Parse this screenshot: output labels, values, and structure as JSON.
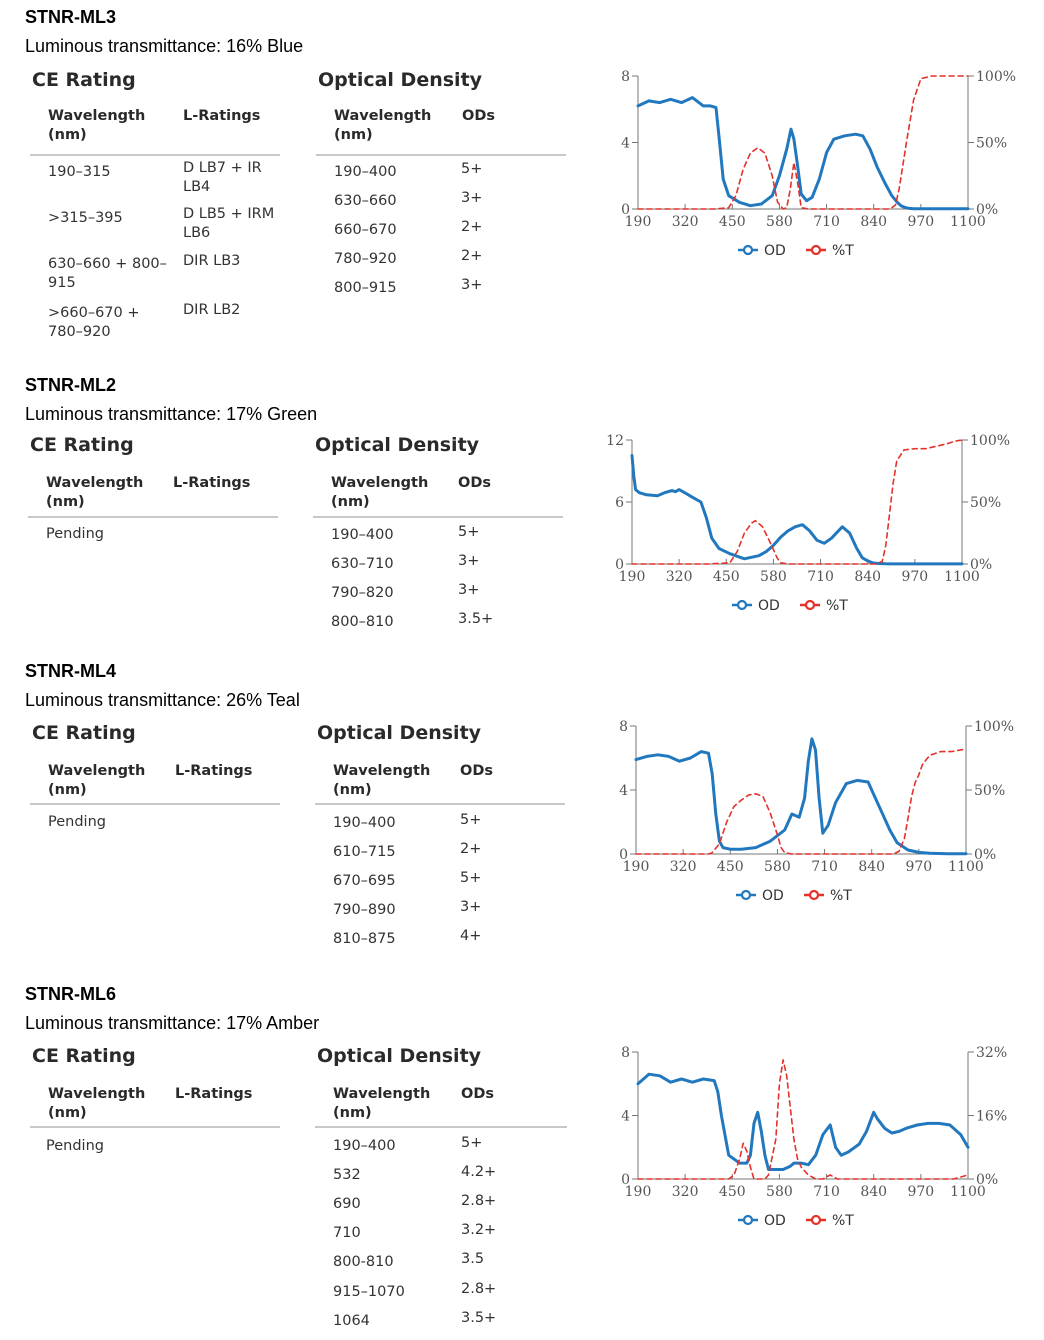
{
  "products": [
    {
      "name": "STNR-ML3",
      "luminous": "Luminous transmittance: 16% Blue",
      "ce_heading": "CE Rating",
      "od_heading": "Optical Density",
      "ce_columns": [
        "Wavelength (nm)",
        "L-Ratings"
      ],
      "od_columns": [
        "Wavelength (nm)",
        "ODs"
      ],
      "ce_rows": [
        [
          "190–315",
          "D LB7 + IR LB4"
        ],
        [
          ">315–395",
          "D LB5 + IRM LB6"
        ],
        [
          "630–660 + 800–915",
          "DIR LB3"
        ],
        [
          ">660–670 + 780–920",
          "DIR LB2"
        ]
      ],
      "od_rows": [
        [
          "190–400",
          "5+"
        ],
        [
          "630–660",
          "3+"
        ],
        [
          "660–670",
          "2+"
        ],
        [
          "780–920",
          "2+"
        ],
        [
          "800–915",
          "3+"
        ]
      ],
      "chart_data": {
        "type": "line",
        "x_ticks": [
          "190",
          "320",
          "450",
          "580",
          "710",
          "840",
          "970",
          "1100"
        ],
        "xlim": [
          190,
          1100
        ],
        "y_left_ticks": [
          "0",
          "4",
          "8"
        ],
        "y_left_lim": [
          0,
          8
        ],
        "y_right_ticks": [
          "0%",
          "50%",
          "100%"
        ],
        "y_right_lim": [
          0,
          100
        ],
        "legend": [
          "OD",
          "%T"
        ],
        "series": [
          {
            "name": "OD",
            "axis": "left",
            "color": "#2278be",
            "x": [
              190,
              220,
              250,
              280,
              310,
              340,
              370,
              390,
              405,
              415,
              425,
              440,
              470,
              500,
              530,
              560,
              580,
              600,
              612,
              620,
              630,
              640,
              655,
              670,
              690,
              710,
              730,
              760,
              790,
              810,
              830,
              850,
              870,
              890,
              905,
              915,
              925,
              935,
              950,
              970,
              1000,
              1050,
              1100
            ],
            "y": [
              6.2,
              6.5,
              6.4,
              6.6,
              6.4,
              6.7,
              6.2,
              6.2,
              6.1,
              4.0,
              1.8,
              0.8,
              0.4,
              0.2,
              0.3,
              0.8,
              2.0,
              3.6,
              4.8,
              4.2,
              2.6,
              0.9,
              0.5,
              0.7,
              1.8,
              3.4,
              4.2,
              4.4,
              4.5,
              4.4,
              3.6,
              2.5,
              1.6,
              0.8,
              0.4,
              0.2,
              0.1,
              0.05,
              0.02,
              0.01,
              0.01,
              0.01,
              0.01
            ]
          },
          {
            "name": "%T",
            "axis": "right",
            "color": "#e4312b",
            "x": [
              190,
              300,
              400,
              440,
              460,
              480,
              500,
              520,
              540,
              560,
              575,
              590,
              600,
              610,
              620,
              630,
              640,
              660,
              700,
              760,
              800,
              840,
              860,
              870,
              880,
              890,
              900,
              910,
              920,
              930,
              940,
              950,
              970,
              1000,
              1030,
              1060,
              1100
            ],
            "y": [
              0,
              0,
              0,
              1,
              10,
              30,
              42,
              46,
              42,
              25,
              5,
              0,
              1,
              15,
              35,
              20,
              1,
              0,
              0,
              0,
              0,
              0,
              0,
              0,
              0,
              1,
              3,
              15,
              32,
              50,
              66,
              82,
              98,
              100,
              100,
              100,
              100
            ]
          }
        ]
      }
    },
    {
      "name": "STNR-ML2",
      "luminous": "Luminous transmittance: 17% Green",
      "ce_heading": "CE Rating",
      "od_heading": "Optical Density",
      "ce_columns": [
        "Wavelength (nm)",
        "L-Ratings"
      ],
      "od_columns": [
        "Wavelength (nm)",
        "ODs"
      ],
      "ce_rows": [
        [
          "Pending",
          ""
        ]
      ],
      "od_rows": [
        [
          "190–400",
          "5+"
        ],
        [
          "630–710",
          "3+"
        ],
        [
          "790–820",
          "3+"
        ],
        [
          "800–810",
          "3.5+"
        ]
      ],
      "chart_data": {
        "type": "line",
        "x_ticks": [
          "190",
          "320",
          "450",
          "580",
          "710",
          "840",
          "970",
          "1100"
        ],
        "xlim": [
          190,
          1100
        ],
        "y_left_ticks": [
          "0",
          "6",
          "12"
        ],
        "y_left_lim": [
          0,
          12
        ],
        "y_right_ticks": [
          "0%",
          "50%",
          "100%"
        ],
        "y_right_lim": [
          0,
          100
        ],
        "legend": [
          "OD",
          "%T"
        ],
        "series": [
          {
            "name": "OD",
            "axis": "left",
            "color": "#2278be",
            "x": [
              190,
              195,
              200,
              210,
              230,
              260,
              280,
              300,
              310,
              320,
              340,
              360,
              380,
              395,
              410,
              430,
              460,
              500,
              540,
              560,
              580,
              600,
              620,
              640,
              660,
              680,
              700,
              720,
              740,
              770,
              790,
              810,
              825,
              840,
              855,
              870,
              890,
              920,
              960,
              1000,
              1050,
              1100
            ],
            "y": [
              10.5,
              8.5,
              7.2,
              6.9,
              6.7,
              6.6,
              6.9,
              7.1,
              7.0,
              7.2,
              6.8,
              6.4,
              6.0,
              4.5,
              2.5,
              1.5,
              1.0,
              0.5,
              0.8,
              1.2,
              1.8,
              2.6,
              3.2,
              3.6,
              3.8,
              3.2,
              2.3,
              2.0,
              2.5,
              3.6,
              3.0,
              1.5,
              0.6,
              0.3,
              0.1,
              0.05,
              0.02,
              0.01,
              0.01,
              0.01,
              0.01,
              0.01
            ]
          },
          {
            "name": "%T",
            "axis": "right",
            "color": "#e4312b",
            "x": [
              190,
              300,
              400,
              460,
              480,
              500,
              520,
              530,
              550,
              570,
              590,
              600,
              620,
              700,
              800,
              860,
              880,
              890,
              900,
              910,
              920,
              940,
              970,
              1000,
              1030,
              1060,
              1080,
              1100
            ],
            "y": [
              0,
              0,
              0,
              1,
              10,
              25,
              33,
              35,
              30,
              18,
              5,
              1,
              0,
              0,
              0,
              0,
              2,
              15,
              40,
              65,
              83,
              92,
              93,
              93,
              95,
              97,
              99,
              100
            ]
          }
        ]
      }
    },
    {
      "name": "STNR-ML4",
      "luminous": "Luminous transmittance: 26% Teal",
      "ce_heading": "CE Rating",
      "od_heading": "Optical Density",
      "ce_columns": [
        "Wavelength (nm)",
        "L-Ratings"
      ],
      "od_columns": [
        "Wavelength (nm)",
        "ODs"
      ],
      "ce_rows": [
        [
          "Pending",
          ""
        ]
      ],
      "od_rows": [
        [
          "190–400",
          "5+"
        ],
        [
          "610–715",
          "2+"
        ],
        [
          "670–695",
          "5+"
        ],
        [
          "790–890",
          "3+"
        ],
        [
          "810–875",
          "4+"
        ]
      ],
      "chart_data": {
        "type": "line",
        "x_ticks": [
          "190",
          "320",
          "450",
          "580",
          "710",
          "840",
          "970",
          "1100"
        ],
        "xlim": [
          190,
          1100
        ],
        "y_left_ticks": [
          "0",
          "4",
          "8"
        ],
        "y_left_lim": [
          0,
          8
        ],
        "y_right_ticks": [
          "0%",
          "50%",
          "100%"
        ],
        "y_right_lim": [
          0,
          100
        ],
        "legend": [
          "OD",
          "%T"
        ],
        "series": [
          {
            "name": "OD",
            "axis": "left",
            "color": "#2278be",
            "x": [
              190,
              220,
              250,
              280,
              310,
              340,
              370,
              390,
              400,
              410,
              420,
              430,
              450,
              480,
              520,
              560,
              600,
              620,
              640,
              655,
              665,
              675,
              685,
              695,
              705,
              720,
              740,
              770,
              800,
              830,
              850,
              870,
              890,
              910,
              940,
              970,
              1000,
              1050,
              1100
            ],
            "y": [
              5.9,
              6.1,
              6.2,
              6.1,
              5.8,
              6.0,
              6.4,
              6.3,
              5.0,
              2.5,
              0.8,
              0.4,
              0.3,
              0.3,
              0.4,
              0.8,
              1.5,
              2.5,
              2.3,
              3.5,
              5.8,
              7.2,
              6.5,
              3.5,
              1.3,
              1.8,
              3.2,
              4.4,
              4.6,
              4.5,
              3.5,
              2.5,
              1.5,
              0.7,
              0.25,
              0.1,
              0.05,
              0.02,
              0.02
            ]
          },
          {
            "name": "%T",
            "axis": "right",
            "color": "#e4312b",
            "x": [
              190,
              300,
              390,
              400,
              420,
              440,
              460,
              480,
              500,
              520,
              540,
              560,
              580,
              590,
              600,
              620,
              640,
              700,
              800,
              900,
              915,
              930,
              940,
              950,
              960,
              970,
              980,
              1000,
              1030,
              1060,
              1080,
              1100
            ],
            "y": [
              0,
              0,
              0,
              1,
              8,
              25,
              37,
              42,
              46,
              47,
              45,
              32,
              15,
              5,
              1,
              0,
              0,
              0,
              0,
              0,
              2,
              12,
              28,
              45,
              56,
              62,
              70,
              77,
              80,
              80,
              81,
              82
            ]
          }
        ]
      }
    },
    {
      "name": "STNR-ML6",
      "luminous": "Luminous transmittance: 17% Amber",
      "ce_heading": "CE Rating",
      "od_heading": "Optical Density",
      "ce_columns": [
        "Wavelength (nm)",
        "L-Ratings"
      ],
      "od_columns": [
        "Wavelength (nm)",
        "ODs"
      ],
      "ce_rows": [
        [
          "Pending",
          ""
        ]
      ],
      "od_rows": [
        [
          "190–400",
          "5+"
        ],
        [
          "532",
          "4.2+"
        ],
        [
          "690",
          "2.8+"
        ],
        [
          "710",
          "3.2+"
        ],
        [
          "800-810",
          "3.5"
        ],
        [
          "915–1070",
          "2.8+"
        ],
        [
          "1064",
          "3.5+"
        ]
      ],
      "chart_data": {
        "type": "line",
        "x_ticks": [
          "190",
          "320",
          "450",
          "580",
          "710",
          "840",
          "970",
          "1100"
        ],
        "xlim": [
          190,
          1100
        ],
        "y_left_ticks": [
          "0",
          "4",
          "8"
        ],
        "y_left_lim": [
          0,
          8
        ],
        "y_right_ticks": [
          "0%",
          "16%",
          "32%"
        ],
        "y_right_lim": [
          0,
          32
        ],
        "legend": [
          "OD",
          "%T"
        ],
        "series": [
          {
            "name": "OD",
            "axis": "left",
            "color": "#2278be",
            "x": [
              190,
              220,
              250,
              280,
              310,
              340,
              370,
              400,
              410,
              420,
              440,
              470,
              490,
              500,
              510,
              520,
              530,
              540,
              550,
              570,
              590,
              610,
              620,
              640,
              660,
              680,
              700,
              720,
              735,
              750,
              770,
              800,
              820,
              840,
              850,
              870,
              890,
              910,
              930,
              960,
              990,
              1020,
              1050,
              1080,
              1100
            ],
            "y": [
              6.0,
              6.6,
              6.5,
              6.1,
              6.3,
              6.1,
              6.3,
              6.2,
              5.5,
              4.0,
              1.5,
              1.0,
              1.0,
              1.5,
              3.5,
              4.2,
              3.0,
              1.5,
              0.6,
              0.6,
              0.6,
              0.8,
              1.0,
              1.0,
              0.9,
              1.5,
              2.8,
              3.4,
              2.0,
              1.5,
              1.7,
              2.2,
              3.0,
              4.2,
              3.8,
              3.2,
              2.9,
              3.0,
              3.2,
              3.4,
              3.5,
              3.5,
              3.4,
              2.8,
              2.0
            ]
          },
          {
            "name": "%T",
            "axis": "right",
            "color": "#e4312b",
            "x": [
              190,
              440,
              455,
              470,
              480,
              490,
              500,
              510,
              540,
              550,
              570,
              580,
              590,
              600,
              610,
              620,
              630,
              640,
              660,
              680,
              700,
              720,
              740,
              1060,
              1100
            ],
            "y": [
              0,
              0,
              1,
              5,
              9,
              7,
              3,
              0,
              0,
              1,
              10,
              24,
              30,
              26,
              18,
              10,
              5,
              3,
              1,
              0,
              0,
              1,
              0,
              0,
              1
            ]
          }
        ]
      }
    }
  ]
}
